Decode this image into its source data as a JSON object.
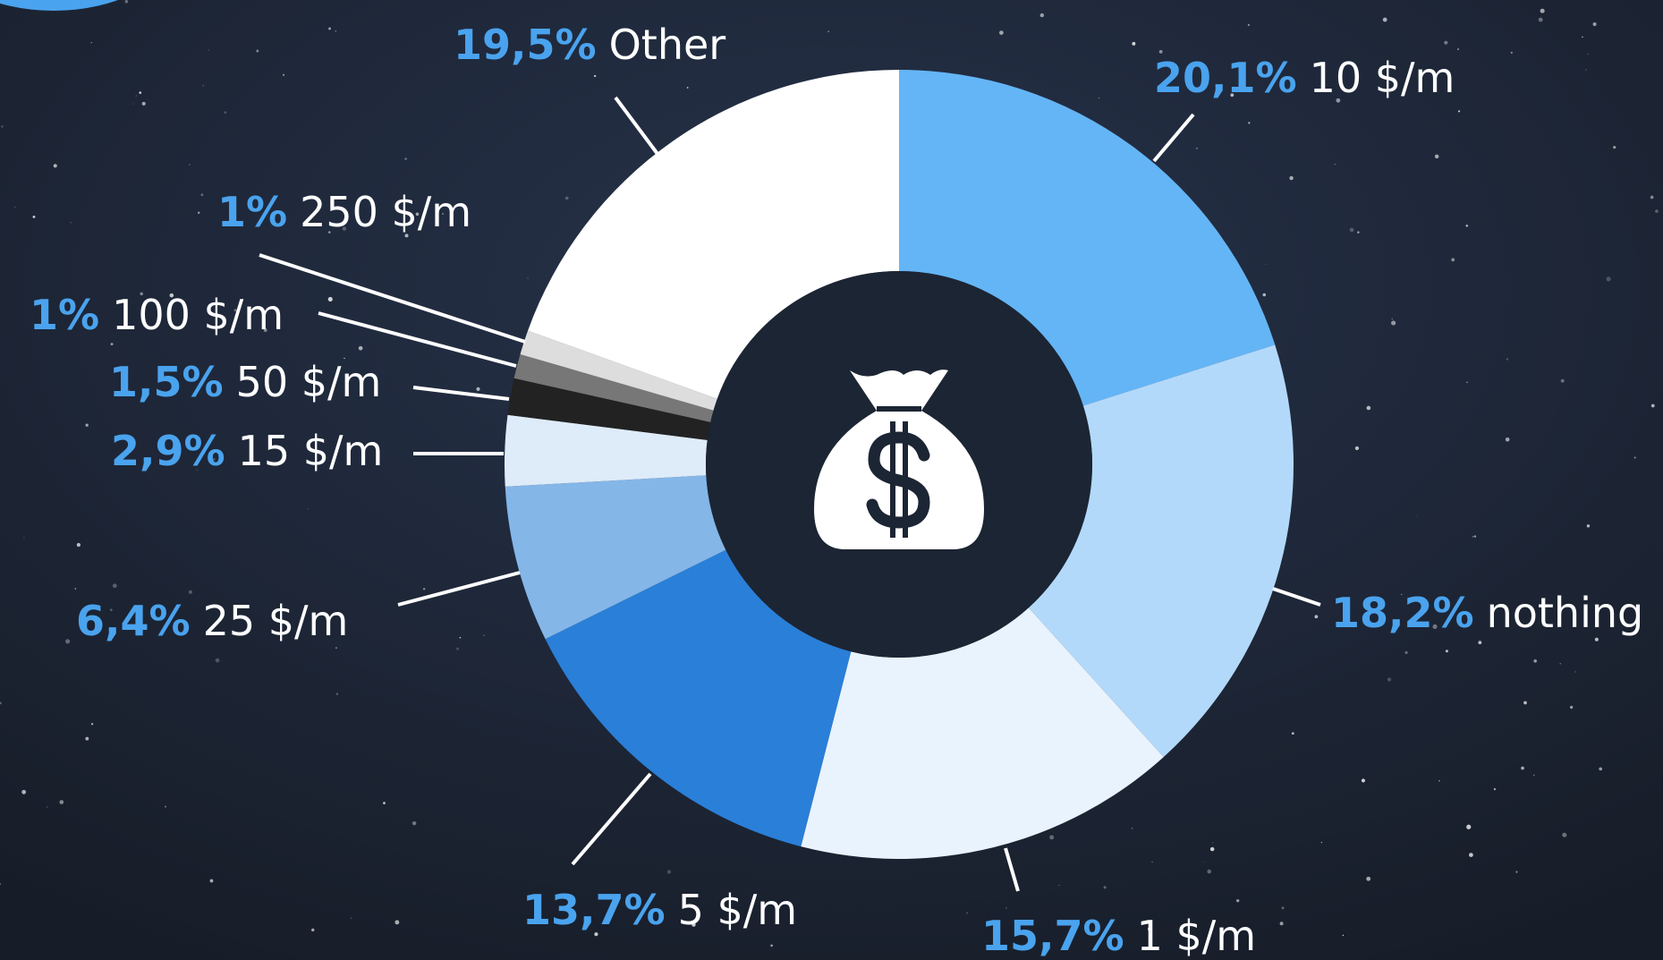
{
  "chart_data": {
    "type": "donut",
    "categories": [
      "10 $/m",
      "nothing",
      "1 $/m",
      "5 $/m",
      "25 $/m",
      "15 $/m",
      "50 $/m",
      "100 $/m",
      "250 $/m",
      "Other"
    ],
    "values": [
      20.1,
      18.2,
      15.7,
      13.7,
      6.4,
      2.9,
      1.5,
      1,
      1,
      19.5
    ],
    "value_labels": [
      "20,1%",
      "18,2%",
      "15,7%",
      "13,7%",
      "6,4%",
      "2,9%",
      "1,5%",
      "1%",
      "1%",
      "19,5%"
    ],
    "colors": [
      "#64b5f6",
      "#b3d9fa",
      "#e8f3fd",
      "#2a7fd8",
      "#84b6e8",
      "#deebf8",
      "#222222",
      "#777777",
      "#dddddd",
      "#ffffff"
    ]
  }
}
